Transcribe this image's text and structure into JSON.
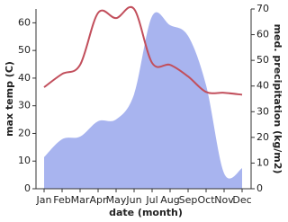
{
  "chart_data": {
    "type": "line-area",
    "xlabel": "date (month)",
    "ylabel": "max temp (C)",
    "y2label": "med. precipitation (kg/m2)",
    "categories": [
      "Jan",
      "Feb",
      "Mar",
      "Apr",
      "May",
      "Jun",
      "Jul",
      "Aug",
      "Sep",
      "Oct",
      "Nov",
      "Dec"
    ],
    "series": [
      {
        "name": "max temp",
        "color": "#c24f5c",
        "kind": "line",
        "values": [
          36.7,
          41.5,
          44.8,
          63.6,
          61.7,
          65,
          45.5,
          44.8,
          40.6,
          35,
          34.7,
          34
        ]
      },
      {
        "name": "med. precipitation",
        "color": "#a8b4ef",
        "kind": "area",
        "axis": "y2",
        "values": [
          12.3,
          19.3,
          20.3,
          26.3,
          27,
          36.8,
          67.2,
          63.7,
          59.5,
          40.3,
          6,
          8
        ]
      }
    ],
    "ylim": [
      0,
      65
    ],
    "yticks": [
      0,
      10,
      20,
      30,
      40,
      50,
      60
    ],
    "y2lim": [
      0,
      70
    ],
    "y2ticks": [
      0,
      10,
      20,
      30,
      40,
      50,
      60,
      70
    ]
  }
}
